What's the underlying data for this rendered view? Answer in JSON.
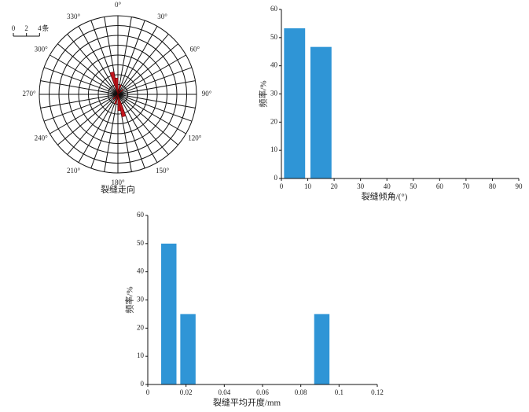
{
  "chart_data": [
    {
      "type": "rose",
      "x_label": "裂缝走向",
      "x": [
        345,
        355,
        165,
        175,
        15,
        195,
        45,
        225
      ],
      "values": [
        3.5,
        2.5,
        3.5,
        2.5,
        1.5,
        1.5,
        1,
        1
      ],
      "color": "#c0161e",
      "rlim": [
        0,
        12
      ],
      "rticks": [
        1.5,
        3,
        4.5,
        6,
        7.5,
        9,
        10.5,
        12
      ],
      "angle_ticks": [
        {
          "value": 0,
          "label": "0°"
        },
        {
          "value": 30,
          "label": "30°"
        },
        {
          "value": 60,
          "label": "60°"
        },
        {
          "value": 90,
          "label": "90°"
        },
        {
          "value": 120,
          "label": "120°"
        },
        {
          "value": 150,
          "label": "150°"
        },
        {
          "value": 180,
          "label": "180°"
        },
        {
          "value": 210,
          "label": "210°"
        },
        {
          "value": 240,
          "label": "240°"
        },
        {
          "value": 270,
          "label": "270°"
        },
        {
          "value": 300,
          "label": "300°"
        },
        {
          "value": 330,
          "label": "330°"
        }
      ],
      "spoke_step": 10,
      "scale": {
        "ticks": [
          0,
          2,
          4
        ],
        "unit": "条"
      }
    },
    {
      "type": "histogram",
      "x_label": "裂缝倾角/(°)",
      "y_label": "频率/%",
      "bins": [
        0,
        10,
        20
      ],
      "values": [
        53.3,
        46.7
      ],
      "color": "#2f95d6",
      "xlim": [
        0,
        90
      ],
      "xticks": [
        0,
        10,
        20,
        30,
        40,
        50,
        60,
        70,
        80,
        90
      ],
      "ylim": [
        0,
        60
      ],
      "yticks": [
        0,
        10,
        20,
        30,
        40,
        50,
        60
      ]
    },
    {
      "type": "histogram",
      "x_label": "裂缝平均开度/mm",
      "y_label": "频率/%",
      "bins": [
        0.006,
        0.016,
        0.026,
        0.036,
        0.046,
        0.056,
        0.066,
        0.076,
        0.086,
        0.096
      ],
      "values": [
        50,
        25,
        0,
        0,
        0,
        0,
        0,
        0,
        25
      ],
      "color": "#2f95d6",
      "xlim": [
        0,
        0.12
      ],
      "xticks": [
        0,
        0.02,
        0.04,
        0.06,
        0.08,
        0.1,
        0.12
      ],
      "ylim": [
        0,
        60
      ],
      "yticks": [
        0,
        10,
        20,
        30,
        40,
        50,
        60
      ]
    }
  ]
}
